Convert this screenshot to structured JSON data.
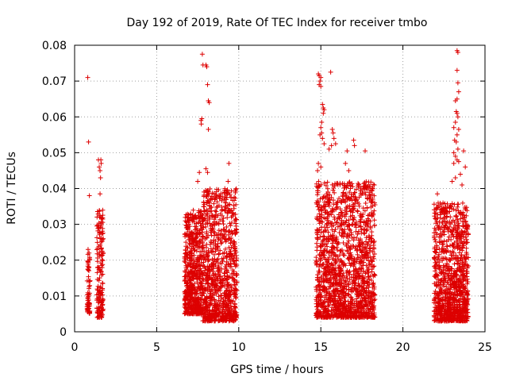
{
  "chart_data": {
    "type": "scatter",
    "title": "Day 192 of 2019, Rate Of TEC Index for receiver tmbo",
    "xlabel": "GPS time / hours",
    "ylabel": "ROTI / TECUs",
    "xlim": [
      0,
      25
    ],
    "ylim": [
      0,
      0.08
    ],
    "x_ticks": [
      0,
      5,
      10,
      15,
      20,
      25
    ],
    "x_tick_labels": [
      "0",
      "5",
      "10",
      "15",
      "20",
      "25"
    ],
    "y_ticks": [
      0,
      0.01,
      0.02,
      0.03,
      0.04,
      0.05,
      0.06,
      0.07,
      0.08
    ],
    "y_tick_labels": [
      "0",
      "0.01",
      "0.02",
      "0.03",
      "0.04",
      "0.05",
      "0.06",
      "0.07",
      "0.08"
    ],
    "grid": true,
    "marker": "+",
    "marker_color": "#dd0000",
    "clusters": [
      {
        "x_start": 0.75,
        "x_end": 0.95,
        "y_low": 0.005,
        "y_high": 0.023,
        "density": 60
      },
      {
        "x_start": 1.35,
        "x_end": 1.75,
        "y_low": 0.004,
        "y_high": 0.034,
        "density": 160
      },
      {
        "x_start": 6.7,
        "x_end": 7.8,
        "y_low": 0.005,
        "y_high": 0.034,
        "density": 600
      },
      {
        "x_start": 7.8,
        "x_end": 9.9,
        "y_low": 0.003,
        "y_high": 0.04,
        "density": 900
      },
      {
        "x_start": 14.7,
        "x_end": 18.3,
        "y_low": 0.004,
        "y_high": 0.042,
        "density": 1500
      },
      {
        "x_start": 21.9,
        "x_end": 24.0,
        "y_low": 0.003,
        "y_high": 0.036,
        "density": 1000
      }
    ],
    "points": [
      [
        0.8,
        0.071
      ],
      [
        0.85,
        0.053
      ],
      [
        0.9,
        0.038
      ],
      [
        0.82,
        0.023
      ],
      [
        0.88,
        0.022
      ],
      [
        1.45,
        0.048
      ],
      [
        1.5,
        0.046
      ],
      [
        1.55,
        0.045
      ],
      [
        1.6,
        0.048
      ],
      [
        1.62,
        0.047
      ],
      [
        1.58,
        0.043
      ],
      [
        1.55,
        0.0385
      ],
      [
        7.7,
        0.059
      ],
      [
        7.75,
        0.0595
      ],
      [
        7.72,
        0.058
      ],
      [
        7.78,
        0.0775
      ],
      [
        7.82,
        0.0745
      ],
      [
        8.0,
        0.0745
      ],
      [
        8.05,
        0.074
      ],
      [
        8.1,
        0.069
      ],
      [
        8.15,
        0.0645
      ],
      [
        8.2,
        0.064
      ],
      [
        8.15,
        0.0565
      ],
      [
        8.0,
        0.0455
      ],
      [
        8.1,
        0.0445
      ],
      [
        7.6,
        0.0445
      ],
      [
        7.5,
        0.042
      ],
      [
        9.4,
        0.047
      ],
      [
        9.35,
        0.042
      ],
      [
        14.85,
        0.072
      ],
      [
        14.9,
        0.0715
      ],
      [
        14.95,
        0.07
      ],
      [
        15.0,
        0.0685
      ],
      [
        14.9,
        0.069
      ],
      [
        15.0,
        0.071
      ],
      [
        15.1,
        0.0635
      ],
      [
        15.15,
        0.0625
      ],
      [
        15.2,
        0.062
      ],
      [
        15.15,
        0.061
      ],
      [
        15.05,
        0.0585
      ],
      [
        15.0,
        0.057
      ],
      [
        14.95,
        0.055
      ],
      [
        15.05,
        0.0555
      ],
      [
        15.1,
        0.054
      ],
      [
        15.2,
        0.0525
      ],
      [
        15.6,
        0.0725
      ],
      [
        15.7,
        0.0565
      ],
      [
        15.75,
        0.0555
      ],
      [
        15.8,
        0.054
      ],
      [
        15.65,
        0.052
      ],
      [
        15.5,
        0.051
      ],
      [
        15.9,
        0.0525
      ],
      [
        16.6,
        0.0505
      ],
      [
        17.0,
        0.0535
      ],
      [
        17.05,
        0.052
      ],
      [
        17.7,
        0.0505
      ],
      [
        14.85,
        0.047
      ],
      [
        15.0,
        0.046
      ],
      [
        14.8,
        0.045
      ],
      [
        16.5,
        0.047
      ],
      [
        16.7,
        0.045
      ],
      [
        22.1,
        0.0385
      ],
      [
        23.3,
        0.0785
      ],
      [
        23.35,
        0.078
      ],
      [
        23.3,
        0.073
      ],
      [
        23.35,
        0.0695
      ],
      [
        23.4,
        0.067
      ],
      [
        23.2,
        0.0645
      ],
      [
        23.3,
        0.065
      ],
      [
        23.25,
        0.0615
      ],
      [
        23.3,
        0.061
      ],
      [
        23.35,
        0.06
      ],
      [
        23.2,
        0.0585
      ],
      [
        23.1,
        0.057
      ],
      [
        23.4,
        0.0565
      ],
      [
        23.3,
        0.055
      ],
      [
        23.15,
        0.0535
      ],
      [
        23.25,
        0.053
      ],
      [
        23.35,
        0.051
      ],
      [
        23.1,
        0.05
      ],
      [
        23.2,
        0.049
      ],
      [
        23.3,
        0.048
      ],
      [
        23.4,
        0.0475
      ],
      [
        23.1,
        0.047
      ],
      [
        23.7,
        0.0505
      ],
      [
        23.8,
        0.046
      ],
      [
        23.5,
        0.044
      ],
      [
        23.2,
        0.043
      ],
      [
        23.0,
        0.042
      ],
      [
        23.6,
        0.041
      ]
    ]
  }
}
